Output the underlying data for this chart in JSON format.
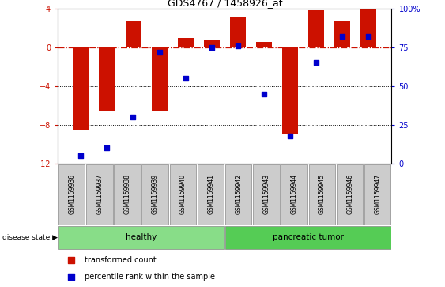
{
  "title": "GDS4767 / 1458926_at",
  "samples": [
    "GSM1159936",
    "GSM1159937",
    "GSM1159938",
    "GSM1159939",
    "GSM1159940",
    "GSM1159941",
    "GSM1159942",
    "GSM1159943",
    "GSM1159944",
    "GSM1159945",
    "GSM1159946",
    "GSM1159947"
  ],
  "bar_values": [
    -8.5,
    -6.5,
    2.8,
    -6.5,
    1.0,
    0.8,
    3.2,
    0.6,
    -9.0,
    3.8,
    2.7,
    4.0
  ],
  "dot_values_pct": [
    5,
    10,
    30,
    72,
    55,
    75,
    76,
    45,
    18,
    65,
    82,
    82
  ],
  "ylim_left": [
    -12,
    4
  ],
  "ylim_right": [
    0,
    100
  ],
  "yticks_left": [
    -12,
    -8,
    -4,
    0,
    4
  ],
  "yticks_right": [
    0,
    25,
    50,
    75,
    100
  ],
  "dotted_lines": [
    -4,
    -8
  ],
  "healthy_count": 6,
  "tumor_count": 6,
  "bar_color": "#CC1100",
  "dot_color": "#0000CC",
  "healthy_color": "#88DD88",
  "tumor_color": "#55CC55",
  "label_bg": "#CCCCCC",
  "plot_bg": "#FFFFFF",
  "legend_bar_label": "transformed count",
  "legend_dot_label": "percentile rank within the sample",
  "disease_label": "disease state",
  "healthy_label": "healthy",
  "tumor_label": "pancreatic tumor"
}
